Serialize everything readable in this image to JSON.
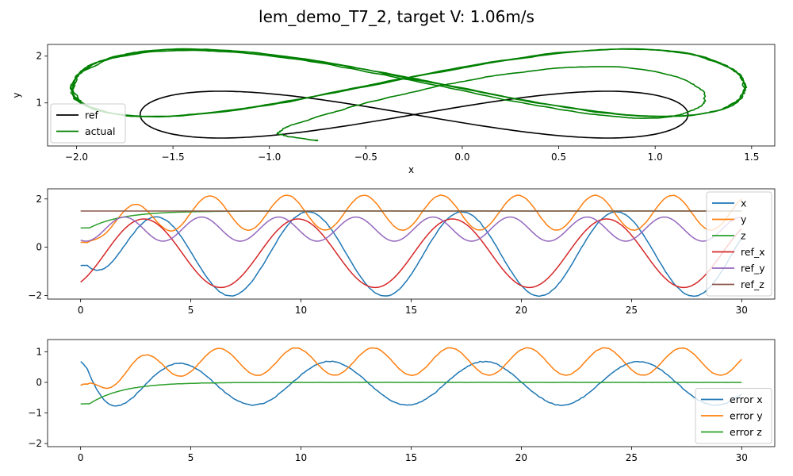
{
  "figure": {
    "title": "lem_demo_T7_2, target V: 1.06m/s"
  },
  "chart_data": [
    {
      "type": "line",
      "xlabel": "x",
      "ylabel": "y",
      "xlim": [
        -2.15,
        1.62
      ],
      "ylim": [
        0.08,
        2.25
      ],
      "xticks": [
        -2.0,
        -1.5,
        -1.0,
        -0.5,
        0.0,
        0.5,
        1.0,
        1.5
      ],
      "xtick_labels": [
        "−2.0",
        "−1.5",
        "−1.0",
        "−0.5",
        "0.0",
        "0.5",
        "1.0",
        "1.5"
      ],
      "yticks": [
        1,
        2
      ],
      "ytick_labels": [
        "1",
        "2"
      ],
      "legend": {
        "position": "lower-left",
        "entries": [
          "ref",
          "actual"
        ]
      },
      "series": [
        {
          "name": "ref",
          "color": "#000000"
        },
        {
          "name": "actual",
          "color": "#008000"
        }
      ]
    },
    {
      "type": "line",
      "xlabel": "",
      "ylabel": "",
      "xlim": [
        -1.5,
        31.5
      ],
      "ylim": [
        -2.15,
        2.42
      ],
      "xticks": [
        0,
        5,
        10,
        15,
        20,
        25,
        30
      ],
      "xtick_labels": [
        "0",
        "5",
        "10",
        "15",
        "20",
        "25",
        "30"
      ],
      "yticks": [
        -2,
        0,
        2
      ],
      "ytick_labels": [
        "−2",
        "0",
        "2"
      ],
      "legend": {
        "position": "right",
        "entries": [
          "x",
          "y",
          "z",
          "ref_x",
          "ref_y",
          "ref_z"
        ]
      },
      "series": [
        {
          "name": "x",
          "color": "#1f77b4"
        },
        {
          "name": "y",
          "color": "#ff7f0e"
        },
        {
          "name": "z",
          "color": "#2ca02c"
        },
        {
          "name": "ref_x",
          "color": "#d62728"
        },
        {
          "name": "ref_y",
          "color": "#9467bd"
        },
        {
          "name": "ref_z",
          "color": "#8c564b"
        }
      ]
    },
    {
      "type": "line",
      "xlabel": "",
      "ylabel": "",
      "xlim": [
        -1.5,
        31.5
      ],
      "ylim": [
        -2.1,
        1.4
      ],
      "xticks": [
        0,
        5,
        10,
        15,
        20,
        25,
        30
      ],
      "xtick_labels": [
        "0",
        "5",
        "10",
        "15",
        "20",
        "25",
        "30"
      ],
      "yticks": [
        -2,
        -1,
        0,
        1
      ],
      "ytick_labels": [
        "−2",
        "−1",
        "0",
        "1"
      ],
      "legend": {
        "position": "lower-right",
        "entries": [
          "error x",
          "error y",
          "error z"
        ]
      },
      "series": [
        {
          "name": "error x",
          "color": "#1f77b4"
        },
        {
          "name": "error y",
          "color": "#ff7f0e"
        },
        {
          "name": "error z",
          "color": "#2ca02c"
        }
      ]
    }
  ]
}
